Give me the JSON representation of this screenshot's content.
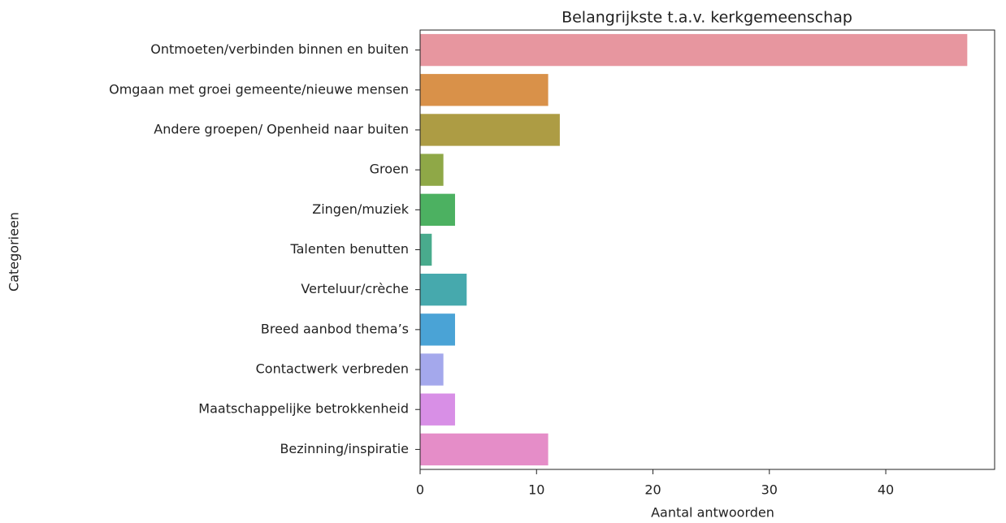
{
  "chart_data": {
    "type": "barh",
    "title": "Belangrijkste t.a.v. kerkgemeenschap",
    "x_label": "Aantal antwoorden",
    "y_label": "Categorieen",
    "categories": [
      "Ontmoeten/verbinden binnen en buiten",
      "Omgaan met groei gemeente/nieuwe mensen",
      "Andere groepen/ Openheid naar buiten",
      "Groen",
      "Zingen/muziek",
      "Talenten benutten",
      "Verteluur/crèche",
      "Breed aanbod thema’s",
      "Contactwerk verbreden",
      "Maatschappelijke betrokkenheid",
      "Bezinning/inspiratie"
    ],
    "values": [
      47,
      11,
      12,
      2,
      3,
      1,
      4,
      3,
      2,
      3,
      11
    ],
    "colors": [
      "#e7969f",
      "#d99149",
      "#ad9c44",
      "#8fa847",
      "#4cb161",
      "#49ab8d",
      "#46a9ad",
      "#4aa3d6",
      "#a4a8ec",
      "#d88fe6",
      "#e58dc8"
    ],
    "xlim": [
      0,
      49.35
    ],
    "xticks": [
      0,
      10,
      20,
      30,
      40
    ]
  }
}
